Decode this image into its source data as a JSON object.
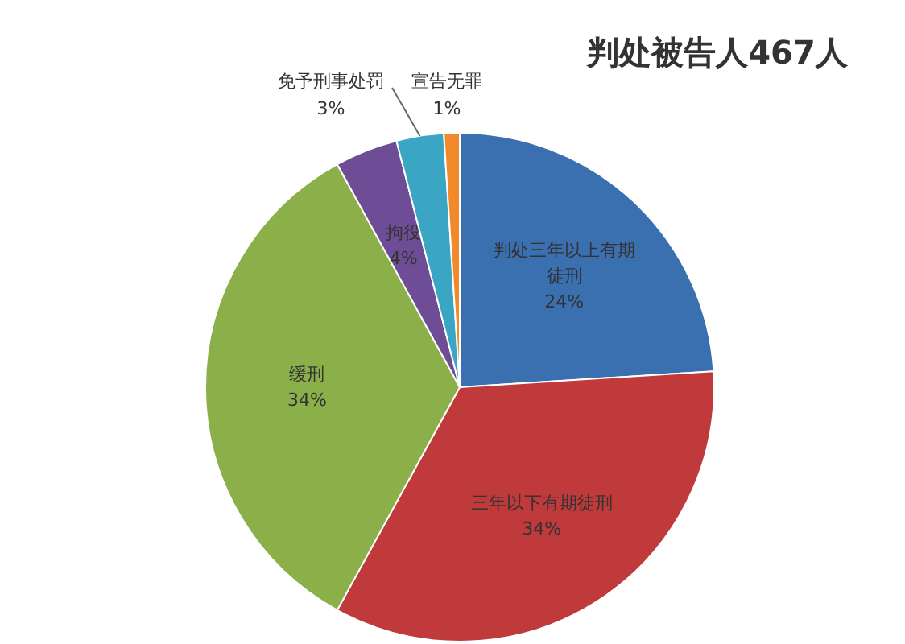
{
  "chart_data": {
    "type": "pie",
    "title": "判处被告人467人",
    "categories": [
      "判处三年以上有期徒刑",
      "三年以下有期徒刑",
      "缓刑",
      "拘役",
      "免予刑事处罚",
      "宣告无罪"
    ],
    "values": [
      24,
      34,
      34,
      4,
      3,
      1
    ],
    "colors": [
      "#3a6fb0",
      "#c0393b",
      "#8bb04a",
      "#6e4d96",
      "#3aa6c4",
      "#f08a2a"
    ],
    "value_labels": [
      "24%",
      "34%",
      "34%",
      "4%",
      "3%",
      "1%"
    ]
  }
}
